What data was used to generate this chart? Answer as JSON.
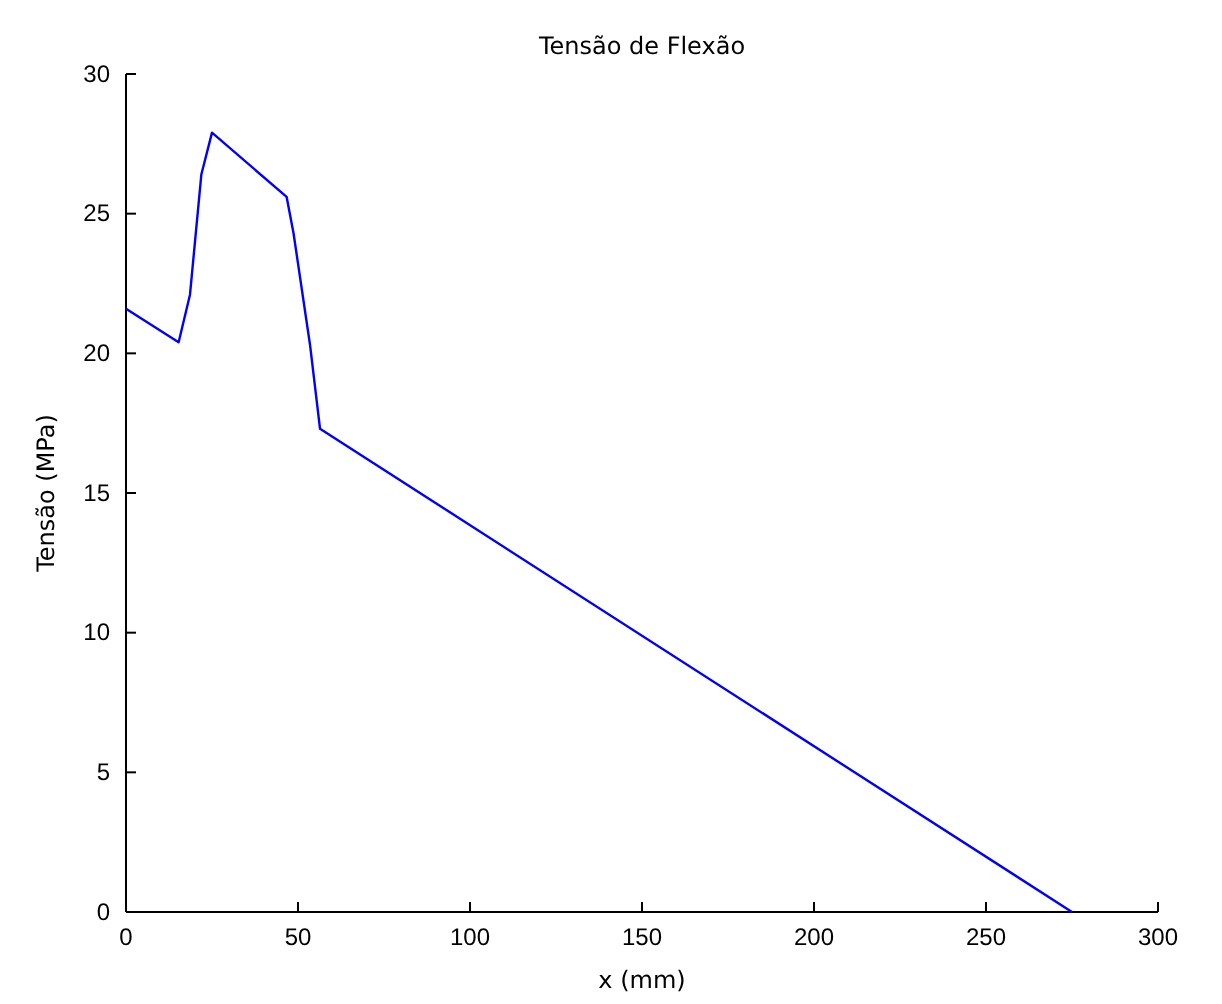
{
  "chart_data": {
    "type": "line",
    "title": "Tensão de Flexão",
    "xlabel": "x (mm)",
    "ylabel": "Tensão (MPa)",
    "xlim": [
      0,
      300
    ],
    "xticks": [
      0,
      50,
      100,
      150,
      200,
      250,
      300
    ],
    "ylim": [
      0,
      30
    ],
    "yticks": [
      0,
      5,
      10,
      15,
      20,
      25,
      30
    ],
    "series": [
      {
        "color": "#0000ff",
        "x": [
          0,
          15.3,
          18.6,
          21.9,
          25,
          46.7,
          48.7,
          53.5,
          56.4,
          275
        ],
        "values": [
          21.6,
          20.4,
          22.1,
          26.4,
          27.9,
          25.6,
          24.3,
          20.3,
          17.3,
          0
        ]
      }
    ]
  }
}
